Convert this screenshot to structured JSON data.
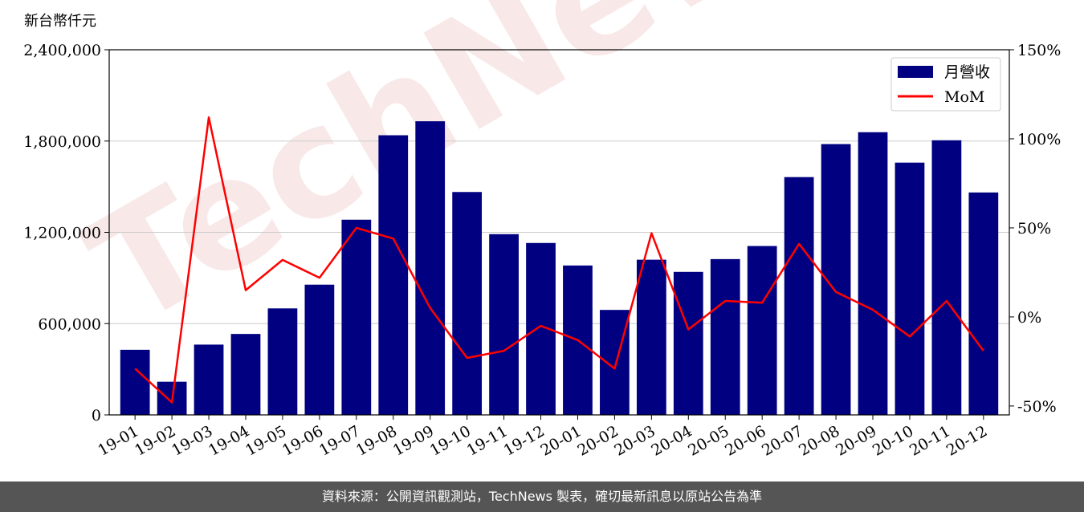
{
  "chart_data": {
    "type": "bar",
    "ylabel": "新台幣仟元",
    "categories": [
      "19-01",
      "19-02",
      "19-03",
      "19-04",
      "19-05",
      "19-06",
      "19-07",
      "19-08",
      "19-09",
      "19-10",
      "19-11",
      "19-12",
      "20-01",
      "20-02",
      "20-03",
      "20-04",
      "20-05",
      "20-06",
      "20-07",
      "20-08",
      "20-09",
      "20-10",
      "20-11",
      "20-12"
    ],
    "series": [
      {
        "name": "月營收",
        "kind": "bar",
        "axis": "left",
        "color": "#000080",
        "values": [
          428000,
          218000,
          462000,
          532000,
          700000,
          856000,
          1283000,
          1838000,
          1930000,
          1465000,
          1188000,
          1130000,
          982000,
          690000,
          1020000,
          940000,
          1024000,
          1110000,
          1563000,
          1780000,
          1858000,
          1658000,
          1805000,
          1462000
        ]
      },
      {
        "name": "MoM",
        "kind": "line",
        "axis": "right",
        "color": "#ff0000",
        "values": [
          -29,
          -48,
          112,
          15,
          32,
          22,
          50,
          44,
          5,
          -23,
          -19,
          -5,
          -13,
          -29,
          47,
          -7,
          9,
          8,
          41,
          14,
          4,
          -11,
          9,
          -19
        ]
      }
    ],
    "y_left": {
      "min": 0,
      "max": 2400000,
      "ticks": [
        0,
        600000,
        1200000,
        1800000,
        2400000
      ],
      "tick_labels": [
        "0",
        "600,000",
        "1,200,000",
        "1,800,000",
        "2,400,000"
      ]
    },
    "y_right": {
      "min": -55,
      "max": 150,
      "ticks": [
        -50,
        0,
        50,
        100,
        150
      ],
      "tick_labels": [
        "-50%",
        "0%",
        "50%",
        "100%",
        "150%"
      ]
    },
    "grid": true,
    "legend_position": "top-right",
    "watermark": "TechNews"
  },
  "footer": {
    "source_text": "資料來源：公開資訊觀測站，TechNews 製表，確切最新訊息以原站公告為準"
  }
}
